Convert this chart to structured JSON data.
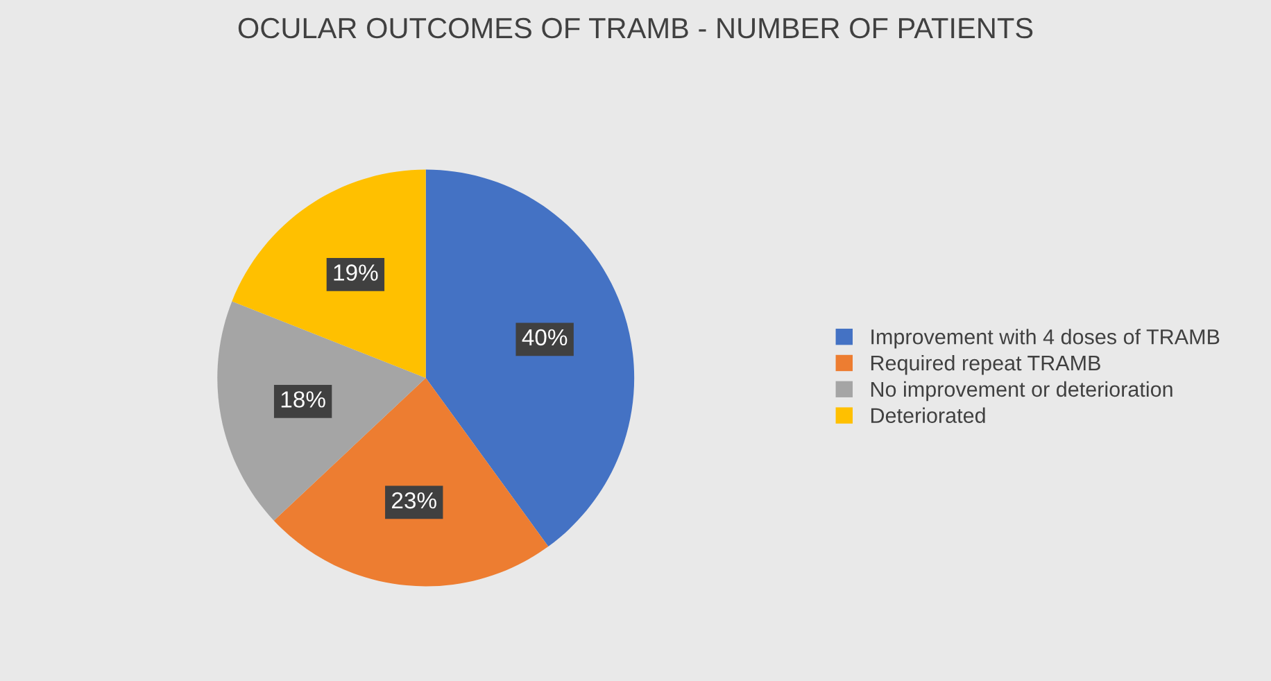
{
  "chart_data": {
    "type": "pie",
    "title": "OCULAR OUTCOMES OF TRAMB - NUMBER OF PATIENTS",
    "categories": [
      "Improvement with 4 doses of TRAMB",
      "Required repeat TRAMB",
      "No improvement or deterioration",
      "Deteriorated"
    ],
    "values": [
      40,
      23,
      18,
      19
    ],
    "colors": [
      "#4472c4",
      "#ed7d31",
      "#a5a5a5",
      "#ffc000"
    ],
    "value_labels": [
      "40%",
      "23%",
      "18%",
      "19%"
    ],
    "legend": "right"
  }
}
